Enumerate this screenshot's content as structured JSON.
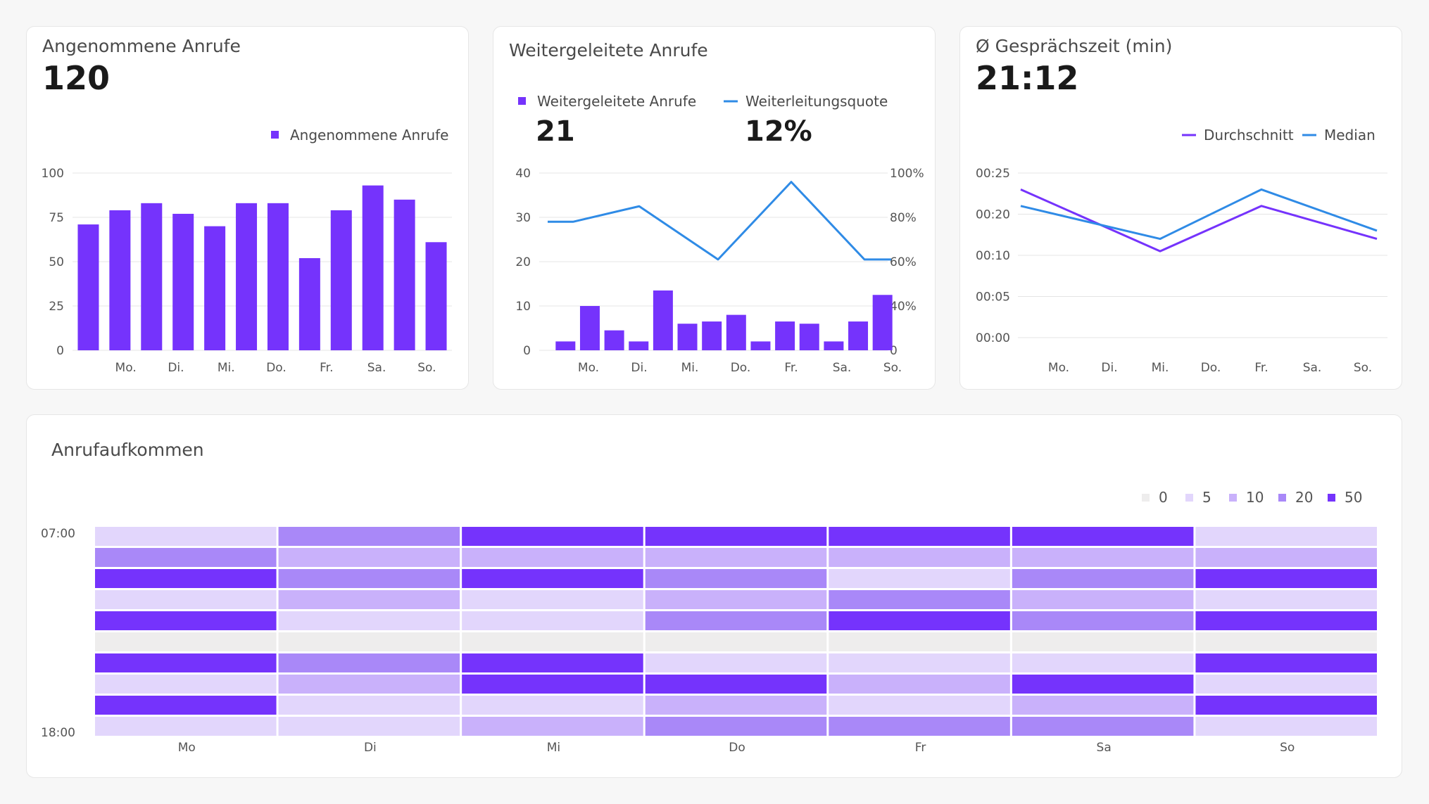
{
  "colors": {
    "purple": "#7533fc",
    "blue": "#2f8be6",
    "grid": "#e4e4e4",
    "axis_text": "#555555",
    "heat_levels": [
      "#eeeded",
      "#e2d6fc",
      "#c9b1fb",
      "#a988f8",
      "#7533fc"
    ]
  },
  "accepted": {
    "title": "Angenommene Anrufe",
    "kpi": "120",
    "legend": "Angenommene Anrufe"
  },
  "forwarded": {
    "title": "Weitergeleitete Anrufe",
    "legend_bar": "Weitergeleitete Anrufe",
    "legend_line": "Weiterleitungsquote",
    "kpi_count": "21",
    "kpi_rate": "12%"
  },
  "duration": {
    "title": "Ø Gesprächszeit (min)",
    "kpi": "21:12",
    "legend_avg": "Durchschnitt",
    "legend_median": "Median"
  },
  "heatmap": {
    "title": "Anrufaufkommen"
  },
  "chart_data": [
    {
      "id": "accepted",
      "type": "bar",
      "ylim": [
        0,
        100
      ],
      "yticks": [
        "0",
        "25",
        "50",
        "75",
        "100"
      ],
      "xticks": [
        "Mo.",
        "Di.",
        "Mi.",
        "Do.",
        "Fr.",
        "Sa.",
        "So."
      ],
      "series": [
        {
          "name": "Angenommene Anrufe",
          "values": [
            71,
            79,
            83,
            77,
            70,
            83,
            83,
            52,
            79,
            93,
            85,
            61
          ]
        }
      ]
    },
    {
      "id": "forwarded",
      "type": "bar",
      "ylim": [
        0,
        40
      ],
      "yticks": [
        "0",
        "10",
        "20",
        "30",
        "40"
      ],
      "y2lim": [
        0,
        100
      ],
      "y2ticks": [
        "0",
        "40%",
        "60%",
        "80%",
        "100%"
      ],
      "xticks": [
        "Mo.",
        "Di.",
        "Mi.",
        "Do.",
        "Fr.",
        "Sa.",
        "So."
      ],
      "series": [
        {
          "name": "Weitergeleitete Anrufe",
          "type": "bar",
          "values": [
            2,
            10,
            4.5,
            2,
            13.5,
            6,
            6.5,
            8,
            2,
            6.5,
            6,
            2,
            6.5,
            12.5
          ]
        },
        {
          "name": "Weiterleitungsquote",
          "type": "line",
          "axis": "right",
          "x": [
            "Mo.",
            "Mo.",
            "Di.",
            "Do.",
            "Fr.",
            "So.",
            "So."
          ],
          "values": [
            78,
            78,
            85,
            61,
            96,
            61,
            61
          ]
        }
      ]
    },
    {
      "id": "duration",
      "type": "line",
      "yticks": [
        "00:00",
        "00:05",
        "00:10",
        "00:20",
        "00:25"
      ],
      "xticks": [
        "Mo.",
        "Di.",
        "Mi.",
        "Do.",
        "Fr.",
        "Sa.",
        "So."
      ],
      "series": [
        {
          "name": "Durchschnitt",
          "x": [
            "Mo.",
            "Mi.",
            "Fr.",
            "So."
          ],
          "values": [
            "00:23",
            "00:11",
            "00:21",
            "00:14"
          ]
        },
        {
          "name": "Median",
          "x": [
            "Mo.",
            "Mi.",
            "Fr.",
            "So."
          ],
          "values": [
            "00:21",
            "00:14",
            "00:23",
            "00:16"
          ]
        }
      ]
    },
    {
      "id": "heatmap",
      "type": "heatmap",
      "columns": [
        "Mo",
        "Di",
        "Mi",
        "Do",
        "Fr",
        "Sa",
        "So"
      ],
      "row_labels_shown": [
        "07:00",
        "18:00"
      ],
      "legend": [
        "0",
        "5",
        "10",
        "20",
        "50"
      ],
      "levels": [
        [
          1,
          3,
          4,
          4,
          4,
          4,
          1
        ],
        [
          3,
          2,
          2,
          2,
          2,
          2,
          2
        ],
        [
          4,
          3,
          4,
          3,
          1,
          3,
          4
        ],
        [
          1,
          2,
          1,
          2,
          3,
          2,
          1
        ],
        [
          4,
          1,
          1,
          3,
          4,
          3,
          4
        ],
        [
          0,
          0,
          0,
          0,
          0,
          0,
          0
        ],
        [
          4,
          3,
          4,
          1,
          1,
          1,
          4
        ],
        [
          1,
          2,
          4,
          4,
          2,
          4,
          1
        ],
        [
          4,
          1,
          1,
          2,
          1,
          2,
          4
        ],
        [
          1,
          1,
          2,
          3,
          3,
          3,
          1
        ]
      ]
    }
  ]
}
